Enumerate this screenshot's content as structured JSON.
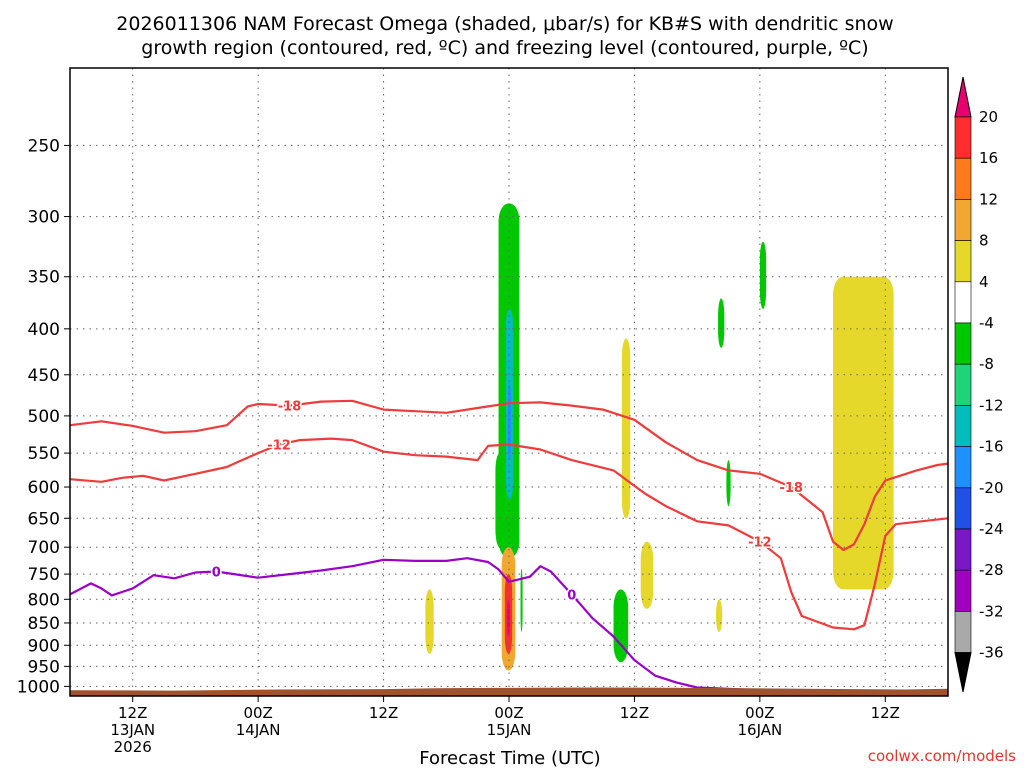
{
  "title": {
    "line1": "2026011306 NAM Forecast Omega (shaded, μbar/s) for KB#S with dendritic snow",
    "line2": "growth region (contoured, red, ºC) and freezing level (contoured, purple, ºC)"
  },
  "credit": "coolwx.com/models",
  "colors": {
    "dgz_contour": "#ee3b3b",
    "freezing_contour": "#9a00c8",
    "ground": "#a0522d",
    "gridline": "#666666"
  },
  "chart_data": {
    "type": "heatmap",
    "xlabel": "Forecast Time (UTC)",
    "ylabel": "",
    "x_forecast_hours": [
      0,
      84
    ],
    "y_pressure_hpa": [
      205,
      1025
    ],
    "y_scale": "log-pressure",
    "grid": true,
    "y_ticks": [
      250,
      300,
      350,
      400,
      450,
      500,
      550,
      600,
      650,
      700,
      750,
      800,
      850,
      900,
      950,
      1000
    ],
    "x_ticks": [
      {
        "hour": 6,
        "lines": [
          "12Z",
          "13JAN",
          "2026"
        ]
      },
      {
        "hour": 18,
        "lines": [
          "00Z",
          "14JAN"
        ]
      },
      {
        "hour": 30,
        "lines": [
          "12Z"
        ]
      },
      {
        "hour": 42,
        "lines": [
          "00Z",
          "15JAN"
        ]
      },
      {
        "hour": 54,
        "lines": [
          "12Z"
        ]
      },
      {
        "hour": 66,
        "lines": [
          "00Z",
          "16JAN"
        ]
      },
      {
        "hour": 78,
        "lines": [
          "12Z"
        ]
      }
    ],
    "colorbar": {
      "unit": "μbar/s",
      "levels": [
        20,
        16,
        12,
        8,
        4,
        -4,
        -8,
        -12,
        -16,
        -20,
        -24,
        -28,
        -32,
        -36
      ],
      "colors": [
        "#e8006e",
        "#ff2d2d",
        "#ff7a1a",
        "#f0a830",
        "#e6d82a",
        "#ffffff",
        "#00c800",
        "#1ed478",
        "#00bcbc",
        "#1e90ff",
        "#2050e6",
        "#7a18c8",
        "#a000c0",
        "#a9a9a9",
        "#000000"
      ]
    },
    "contours": [
      {
        "label": "-18",
        "color": "#ee3b3b",
        "points": [
          [
            0,
            512
          ],
          [
            3,
            507
          ],
          [
            6,
            513
          ],
          [
            9,
            522
          ],
          [
            12,
            520
          ],
          [
            15,
            512
          ],
          [
            16,
            500
          ],
          [
            17,
            488
          ],
          [
            18,
            485
          ],
          [
            21,
            487
          ],
          [
            24,
            482
          ],
          [
            27,
            481
          ],
          [
            30,
            492
          ],
          [
            33,
            494
          ],
          [
            36,
            496
          ],
          [
            39,
            490
          ],
          [
            42,
            484
          ],
          [
            45,
            483
          ],
          [
            48,
            487
          ],
          [
            51,
            492
          ],
          [
            54,
            505
          ],
          [
            57,
            535
          ],
          [
            60,
            560
          ],
          [
            63,
            575
          ],
          [
            66,
            580
          ],
          [
            69,
            600
          ],
          [
            72,
            640
          ],
          [
            73,
            690
          ],
          [
            74,
            705
          ],
          [
            75,
            695
          ],
          [
            76,
            660
          ],
          [
            77,
            615
          ],
          [
            78,
            590
          ],
          [
            81,
            575
          ],
          [
            83,
            567
          ],
          [
            84,
            565
          ]
        ]
      },
      {
        "label": "-12",
        "color": "#ee3b3b",
        "points": [
          [
            0,
            588
          ],
          [
            3,
            592
          ],
          [
            5,
            586
          ],
          [
            7,
            583
          ],
          [
            9,
            590
          ],
          [
            12,
            580
          ],
          [
            15,
            570
          ],
          [
            16,
            563
          ],
          [
            18,
            550
          ],
          [
            20,
            538
          ],
          [
            22,
            532
          ],
          [
            25,
            530
          ],
          [
            27,
            532
          ],
          [
            30,
            548
          ],
          [
            33,
            553
          ],
          [
            36,
            555
          ],
          [
            39,
            560
          ],
          [
            40,
            540
          ],
          [
            42,
            538
          ],
          [
            45,
            545
          ],
          [
            48,
            560
          ],
          [
            52,
            575
          ],
          [
            55,
            610
          ],
          [
            57,
            630
          ],
          [
            60,
            655
          ],
          [
            63,
            662
          ],
          [
            66,
            690
          ],
          [
            68,
            720
          ],
          [
            69,
            785
          ],
          [
            70,
            835
          ],
          [
            73,
            860
          ],
          [
            75,
            864
          ],
          [
            76,
            855
          ],
          [
            77,
            770
          ],
          [
            78,
            680
          ],
          [
            79,
            660
          ],
          [
            82,
            654
          ],
          [
            84,
            650
          ]
        ]
      },
      {
        "label": "0",
        "color": "#9a00c8",
        "points": [
          [
            0,
            790
          ],
          [
            2,
            768
          ],
          [
            3,
            778
          ],
          [
            4,
            792
          ],
          [
            6,
            778
          ],
          [
            8,
            752
          ],
          [
            10,
            758
          ],
          [
            12,
            747
          ],
          [
            14,
            745
          ],
          [
            18,
            757
          ],
          [
            21,
            750
          ],
          [
            24,
            743
          ],
          [
            27,
            735
          ],
          [
            30,
            723
          ],
          [
            33,
            725
          ],
          [
            36,
            725
          ],
          [
            38,
            720
          ],
          [
            40,
            727
          ],
          [
            41,
            741
          ],
          [
            42,
            765
          ],
          [
            44,
            755
          ],
          [
            45,
            735
          ],
          [
            46,
            745
          ],
          [
            48,
            790
          ],
          [
            50,
            840
          ],
          [
            52,
            880
          ],
          [
            54,
            935
          ],
          [
            56,
            973
          ],
          [
            58,
            990
          ],
          [
            60,
            1003
          ],
          [
            66,
            1010
          ],
          [
            70,
            1015
          ],
          [
            74,
            1018
          ],
          [
            84,
            1018
          ]
        ]
      }
    ],
    "omega_areas": [
      {
        "hours": [
          41,
          43
        ],
        "pressure_hpa": [
          290,
          720
        ],
        "omega": -8
      },
      {
        "hours": [
          41.7,
          42.4
        ],
        "pressure_hpa": [
          380,
          620
        ],
        "omega": -14
      },
      {
        "hours": [
          41.9,
          42.2
        ],
        "pressure_hpa": [
          460,
          560
        ],
        "omega": -18
      },
      {
        "hours": [
          40.7,
          41.5
        ],
        "pressure_hpa": [
          550,
          700
        ],
        "omega": -8
      },
      {
        "hours": [
          41.3,
          42.6
        ],
        "pressure_hpa": [
          700,
          960
        ],
        "omega": 8
      },
      {
        "hours": [
          41.6,
          42.3
        ],
        "pressure_hpa": [
          750,
          920
        ],
        "omega": 16
      },
      {
        "hours": [
          41.8,
          42.1
        ],
        "pressure_hpa": [
          800,
          880
        ],
        "omega": 20
      },
      {
        "hours": [
          34,
          34.8
        ],
        "pressure_hpa": [
          780,
          920
        ],
        "omega": 4
      },
      {
        "hours": [
          52.8,
          53.6
        ],
        "pressure_hpa": [
          410,
          650
        ],
        "omega": 4
      },
      {
        "hours": [
          52,
          53.4
        ],
        "pressure_hpa": [
          780,
          940
        ],
        "omega": -8
      },
      {
        "hours": [
          54.6,
          55.8
        ],
        "pressure_hpa": [
          690,
          820
        ],
        "omega": 4
      },
      {
        "hours": [
          62,
          62.6
        ],
        "pressure_hpa": [
          370,
          420
        ],
        "omega": -8
      },
      {
        "hours": [
          66,
          66.6
        ],
        "pressure_hpa": [
          320,
          380
        ],
        "omega": -8
      },
      {
        "hours": [
          62.8,
          63.2
        ],
        "pressure_hpa": [
          560,
          630
        ],
        "omega": -8
      },
      {
        "hours": [
          61.8,
          62.4
        ],
        "pressure_hpa": [
          800,
          870
        ],
        "omega": 4
      },
      {
        "hours": [
          73,
          78.8
        ],
        "pressure_hpa": [
          350,
          780
        ],
        "omega": 4
      },
      {
        "hours": [
          43.1,
          43.3
        ],
        "pressure_hpa": [
          740,
          870
        ],
        "omega": -8
      }
    ]
  }
}
